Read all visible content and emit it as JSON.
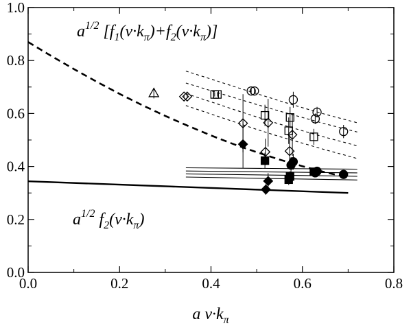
{
  "chart_data": {
    "type": "scatter",
    "xlabel": "a v·k_π",
    "ylabel": "",
    "xlim": [
      0.0,
      0.8
    ],
    "ylim": [
      0.0,
      1.0
    ],
    "x_ticks": [
      0.0,
      0.2,
      0.4,
      0.6,
      0.8
    ],
    "y_ticks": [
      0.0,
      0.2,
      0.4,
      0.6,
      0.8,
      1.0
    ],
    "x_tick_labels": [
      "0.0",
      "0.2",
      "0.4",
      "0.6",
      "0.8"
    ],
    "y_tick_labels": [
      "0.0",
      "0.2",
      "0.4",
      "0.6",
      "0.8",
      "1.0"
    ],
    "grid": false,
    "annotations": {
      "upper": {
        "base": "a",
        "exp": "1/2",
        "text": "[f",
        "sub1": "1",
        "mid1": "(v·k",
        "sub2": "π",
        "mid2": ")+f",
        "sub3": "2",
        "mid3": "(v·k",
        "sub4": "π",
        "end": ")]"
      },
      "lower": {
        "base": "a",
        "exp": "1/2",
        "text": "f",
        "sub1": "2",
        "mid1": "(v·k",
        "sub2": "π",
        "end": ")"
      }
    },
    "series": [
      {
        "marker": "circle-open",
        "points": [
          [
            0.488,
            0.685,
            0.01
          ],
          [
            0.495,
            0.685,
            0.01
          ],
          [
            0.58,
            0.652,
            0.03
          ],
          [
            0.632,
            0.605,
            0.02
          ],
          [
            0.628,
            0.58,
            0.02
          ],
          [
            0.69,
            0.532,
            0.025
          ]
        ]
      },
      {
        "marker": "square-open",
        "points": [
          [
            0.408,
            0.672,
            0.008
          ],
          [
            0.414,
            0.672,
            0.008
          ],
          [
            0.518,
            0.593,
            0.04
          ],
          [
            0.573,
            0.585,
            0.04
          ],
          [
            0.57,
            0.535,
            0.05
          ],
          [
            0.625,
            0.512,
            0.03
          ]
        ]
      },
      {
        "marker": "diamond-open",
        "points": [
          [
            0.341,
            0.664,
            0.005
          ],
          [
            0.348,
            0.664,
            0.005
          ],
          [
            0.47,
            0.563,
            0.11
          ],
          [
            0.525,
            0.565,
            0.09
          ],
          [
            0.519,
            0.455,
            0.05
          ],
          [
            0.578,
            0.52,
            0.08
          ],
          [
            0.572,
            0.458,
            0.06
          ]
        ]
      },
      {
        "marker": "triangle-open",
        "points": [
          [
            0.275,
            0.677,
            0.02
          ]
        ]
      },
      {
        "marker": "diamond-filled",
        "points": [
          [
            0.47,
            0.484,
            0.09
          ],
          [
            0.525,
            0.345,
            0.03
          ],
          [
            0.52,
            0.313,
            0.02
          ]
        ]
      },
      {
        "marker": "square-filled",
        "points": [
          [
            0.518,
            0.422,
            0.03
          ],
          [
            0.573,
            0.362,
            0.02
          ],
          [
            0.57,
            0.35,
            0.02
          ],
          [
            0.625,
            0.38,
            0.01
          ]
        ]
      },
      {
        "marker": "circle-filled",
        "points": [
          [
            0.58,
            0.418,
            0.03
          ],
          [
            0.575,
            0.405,
            0.03
          ],
          [
            0.632,
            0.382,
            0.01
          ],
          [
            0.628,
            0.376,
            0.01
          ],
          [
            0.69,
            0.37,
            0.01
          ]
        ]
      }
    ],
    "curves": [
      {
        "style": "solid-thick",
        "x": [
          0.0,
          0.7
        ],
        "y": [
          0.344,
          0.3
        ]
      },
      {
        "style": "solid-thin",
        "x": [
          0.345,
          0.72
        ],
        "y": [
          0.395,
          0.39
        ]
      },
      {
        "style": "solid-thin",
        "x": [
          0.345,
          0.72
        ],
        "y": [
          0.383,
          0.376
        ]
      },
      {
        "style": "solid-thin",
        "x": [
          0.345,
          0.72
        ],
        "y": [
          0.372,
          0.363
        ]
      },
      {
        "style": "solid-thin",
        "x": [
          0.345,
          0.72
        ],
        "y": [
          0.36,
          0.349
        ]
      },
      {
        "style": "dashed-thick",
        "x": [
          0.0,
          0.05,
          0.1,
          0.15,
          0.2,
          0.25,
          0.3,
          0.35,
          0.4,
          0.45,
          0.5,
          0.55,
          0.6,
          0.65,
          0.7
        ],
        "y": [
          0.87,
          0.818,
          0.768,
          0.72,
          0.674,
          0.631,
          0.591,
          0.553,
          0.517,
          0.484,
          0.454,
          0.426,
          0.401,
          0.378,
          0.358
        ]
      },
      {
        "style": "dashed-thin",
        "x": [
          0.345,
          0.4,
          0.45,
          0.5,
          0.55,
          0.6,
          0.65,
          0.72
        ],
        "y": [
          0.76,
          0.73,
          0.702,
          0.675,
          0.648,
          0.622,
          0.597,
          0.565
        ]
      },
      {
        "style": "dashed-thin",
        "x": [
          0.345,
          0.4,
          0.45,
          0.5,
          0.55,
          0.6,
          0.65,
          0.72
        ],
        "y": [
          0.715,
          0.686,
          0.66,
          0.634,
          0.609,
          0.585,
          0.561,
          0.53
        ]
      },
      {
        "style": "dashed-thin",
        "x": [
          0.345,
          0.4,
          0.45,
          0.5,
          0.55,
          0.6,
          0.65,
          0.72
        ],
        "y": [
          0.675,
          0.644,
          0.615,
          0.587,
          0.56,
          0.535,
          0.51,
          0.478
        ]
      },
      {
        "style": "dashed-thin",
        "x": [
          0.345,
          0.4,
          0.45,
          0.5,
          0.55,
          0.6,
          0.65,
          0.72
        ],
        "y": [
          0.63,
          0.598,
          0.569,
          0.54,
          0.513,
          0.488,
          0.463,
          0.43
        ]
      }
    ]
  }
}
